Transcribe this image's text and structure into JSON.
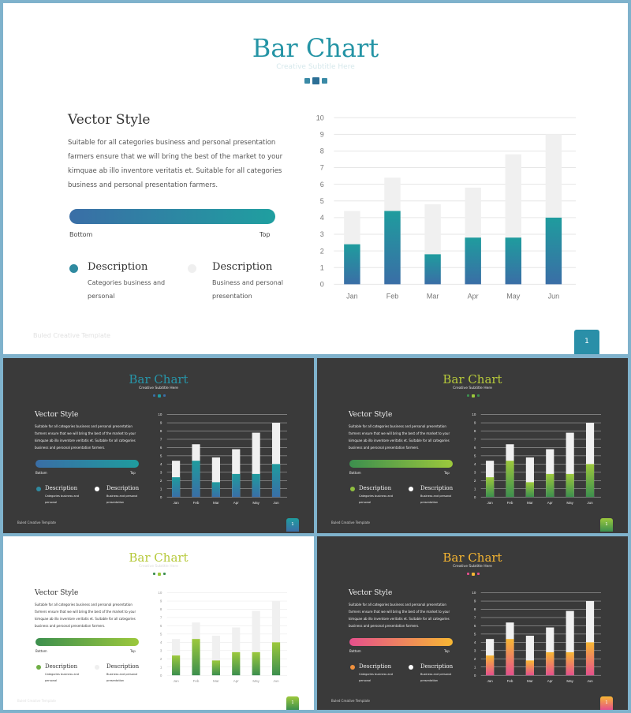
{
  "slide": {
    "title": "Bar Chart",
    "subtitle": "Creative Subtitle Here",
    "heading": "Vector Style",
    "paragraph_main": [
      "Suitable for all categories business and personal presentation",
      "farmers ensure that we will bring the best of the market to your",
      "kimquae ab illo inventore veritatis et. Suitable for all categories",
      "business and personal presentation farmers."
    ],
    "paragraph_small": [
      "Suitable for all categories business and personal presentation",
      "farmers ensure that we will bring the best of the market to your",
      "kimquae ab illo inventore veritatis et. Suitable for all categories",
      "business and personal presentation farmers."
    ],
    "bottom_label": "Bottom",
    "top_label": "Top",
    "desc1_title": "Description",
    "desc1_text_main": [
      "Categories business and",
      "personal"
    ],
    "desc1_text_small": [
      "Categories business and",
      "personal"
    ],
    "desc2_title": "Description",
    "desc2_text_main": [
      "Business and personal",
      "presentation"
    ],
    "desc2_text_small": [
      "Business and personal",
      "presentation"
    ],
    "footer": "Buled Creative Template",
    "page_number": "1"
  },
  "themes": {
    "main": {
      "title": "#2494a5",
      "bar_top": "#1f9c9e",
      "bar_bottom": "#3a6ea6",
      "ghost": "#f0f0f0",
      "dot1": "#2f8aa0",
      "dot2": "#efefef"
    },
    "tl": {
      "title": "#2796aa",
      "bar_top": "#1f9c9e",
      "bar_bottom": "#3a6ea6",
      "ghost": "#f0f0f0",
      "dot1": "#2f8aa0",
      "dot2": "#ffffff"
    },
    "tr": {
      "title": "#b6c93a",
      "bar_top": "#9cc83c",
      "bar_bottom": "#3c8f4e",
      "ghost": "#f0f0f0",
      "dot1": "#8fbe3f",
      "dot2": "#ffffff"
    },
    "bl": {
      "title": "#b6c93a",
      "bar_top": "#9cc83c",
      "bar_bottom": "#3c8f4e",
      "ghost": "#f0f0f0",
      "dot1": "#6fae45",
      "dot2": "#efefef"
    },
    "br": {
      "title": "#f5b531",
      "bar_top": "#f7b733",
      "bar_bottom": "#e5508c",
      "ghost": "#f0f0f0",
      "dot1": "#f0913d",
      "dot2": "#ffffff"
    }
  },
  "chart_data": {
    "type": "bar",
    "categories": [
      "Jan",
      "Feb",
      "Mar",
      "Apr",
      "May",
      "Jun"
    ],
    "series": [
      {
        "values": [
          2.4,
          4.4,
          1.8,
          2.8,
          2.8,
          4.0
        ]
      },
      {
        "values": [
          4.4,
          6.4,
          4.8,
          5.8,
          7.8,
          9.0
        ]
      }
    ],
    "ylim": [
      0,
      10
    ],
    "yticks": [
      0,
      1,
      2,
      3,
      4,
      5,
      6,
      7,
      8,
      9,
      10
    ],
    "grid": true
  }
}
